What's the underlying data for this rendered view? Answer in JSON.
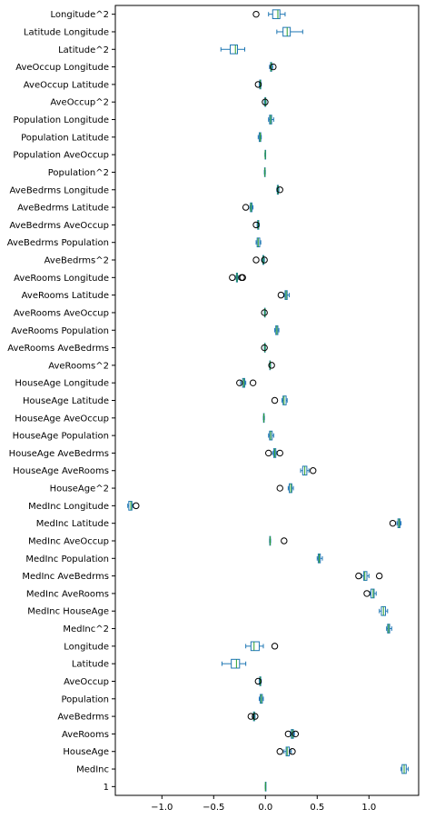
{
  "chart_data": {
    "type": "boxplot",
    "orientation": "horizontal",
    "xlim": [
      -1.45,
      1.48
    ],
    "xticks": [
      -1.0,
      -0.5,
      0.0,
      0.5,
      1.0
    ],
    "xtick_labels": [
      "−1.0",
      "−0.5",
      "0.0",
      "0.5",
      "1.0"
    ],
    "colors": {
      "box": "#1f77b4",
      "median": "#2ca02c",
      "whisker": "#1f77b4",
      "flier": "#000000"
    },
    "boxes": [
      {
        "label": "Longitude^2",
        "wlo": 0.03,
        "q1": 0.07,
        "med": 0.12,
        "q3": 0.14,
        "whi": 0.19,
        "fliers": [
          -0.09
        ]
      },
      {
        "label": "Latitude Longitude",
        "wlo": 0.11,
        "q1": 0.17,
        "med": 0.21,
        "q3": 0.24,
        "whi": 0.36,
        "fliers": []
      },
      {
        "label": "Latitude^2",
        "wlo": -0.43,
        "q1": -0.34,
        "med": -0.29,
        "q3": -0.27,
        "whi": -0.2,
        "fliers": []
      },
      {
        "label": "AveOccup Longitude",
        "wlo": 0.04,
        "q1": 0.05,
        "med": 0.055,
        "q3": 0.06,
        "whi": 0.07,
        "fliers": [
          0.075
        ]
      },
      {
        "label": "AveOccup Latitude",
        "wlo": -0.06,
        "q1": -0.055,
        "med": -0.05,
        "q3": -0.045,
        "whi": -0.04,
        "fliers": [
          -0.07
        ]
      },
      {
        "label": "AveOccup^2",
        "wlo": -0.01,
        "q1": -0.005,
        "med": 0.0,
        "q3": 0.003,
        "whi": 0.006,
        "fliers": [
          -0.003
        ]
      },
      {
        "label": "Population Longitude",
        "wlo": 0.03,
        "q1": 0.04,
        "med": 0.05,
        "q3": 0.06,
        "whi": 0.08,
        "fliers": []
      },
      {
        "label": "Population Latitude",
        "wlo": -0.07,
        "q1": -0.06,
        "med": -0.05,
        "q3": -0.045,
        "whi": -0.04,
        "fliers": []
      },
      {
        "label": "Population AveOccup",
        "wlo": -0.005,
        "q1": -0.003,
        "med": -0.002,
        "q3": -0.001,
        "whi": 0.001,
        "fliers": []
      },
      {
        "label": "Population^2",
        "wlo": -0.01,
        "q1": -0.008,
        "med": -0.005,
        "q3": -0.003,
        "whi": -0.001,
        "fliers": []
      },
      {
        "label": "AveBedrms Longitude",
        "wlo": 0.11,
        "q1": 0.115,
        "med": 0.12,
        "q3": 0.125,
        "whi": 0.13,
        "fliers": [
          0.14
        ]
      },
      {
        "label": "AveBedrms Latitude",
        "wlo": -0.15,
        "q1": -0.145,
        "med": -0.14,
        "q3": -0.13,
        "whi": -0.12,
        "fliers": [
          -0.19
        ]
      },
      {
        "label": "AveBedrms AveOccup",
        "wlo": -0.08,
        "q1": -0.075,
        "med": -0.07,
        "q3": -0.065,
        "whi": -0.06,
        "fliers": [
          -0.09
        ]
      },
      {
        "label": "AveBedrms Population",
        "wlo": -0.09,
        "q1": -0.08,
        "med": -0.07,
        "q3": -0.055,
        "whi": -0.045,
        "fliers": []
      },
      {
        "label": "AveBedrms^2",
        "wlo": -0.03,
        "q1": -0.025,
        "med": -0.02,
        "q3": -0.015,
        "whi": -0.01,
        "fliers": [
          -0.09,
          -0.01
        ]
      },
      {
        "label": "AveRooms Longitude",
        "wlo": -0.29,
        "q1": -0.28,
        "med": -0.275,
        "q3": -0.27,
        "whi": -0.26,
        "fliers": [
          -0.32,
          -0.23,
          -0.22
        ]
      },
      {
        "label": "AveRooms Latitude",
        "wlo": 0.18,
        "q1": 0.19,
        "med": 0.2,
        "q3": 0.21,
        "whi": 0.23,
        "fliers": [
          0.15
        ]
      },
      {
        "label": "AveRooms AveOccup",
        "wlo": -0.01,
        "q1": -0.008,
        "med": -0.005,
        "q3": -0.003,
        "whi": 0.0,
        "fliers": [
          -0.01
        ]
      },
      {
        "label": "AveRooms Population",
        "wlo": 0.09,
        "q1": 0.1,
        "med": 0.11,
        "q3": 0.12,
        "whi": 0.13,
        "fliers": []
      },
      {
        "label": "AveRooms AveBedrms",
        "wlo": -0.01,
        "q1": -0.008,
        "med": -0.005,
        "q3": -0.003,
        "whi": 0.0,
        "fliers": [
          -0.01
        ]
      },
      {
        "label": "AveRooms^2",
        "wlo": 0.04,
        "q1": 0.042,
        "med": 0.045,
        "q3": 0.047,
        "whi": 0.05,
        "fliers": [
          0.06
        ]
      },
      {
        "label": "HouseAge Longitude",
        "wlo": -0.24,
        "q1": -0.22,
        "med": -0.21,
        "q3": -0.2,
        "whi": -0.19,
        "fliers": [
          -0.25,
          -0.12
        ]
      },
      {
        "label": "HouseAge Latitude",
        "wlo": 0.16,
        "q1": 0.17,
        "med": 0.18,
        "q3": 0.2,
        "whi": 0.21,
        "fliers": [
          0.09
        ]
      },
      {
        "label": "HouseAge AveOccup",
        "wlo": -0.02,
        "q1": -0.018,
        "med": -0.015,
        "q3": -0.013,
        "whi": -0.01,
        "fliers": []
      },
      {
        "label": "HouseAge Population",
        "wlo": 0.03,
        "q1": 0.04,
        "med": 0.05,
        "q3": 0.065,
        "whi": 0.08,
        "fliers": []
      },
      {
        "label": "HouseAge AveBedrms",
        "wlo": 0.07,
        "q1": 0.08,
        "med": 0.09,
        "q3": 0.1,
        "whi": 0.11,
        "fliers": [
          0.03,
          0.14
        ]
      },
      {
        "label": "HouseAge AveRooms",
        "wlo": 0.34,
        "q1": 0.36,
        "med": 0.38,
        "q3": 0.4,
        "whi": 0.42,
        "fliers": [
          0.46
        ]
      },
      {
        "label": "HouseAge^2",
        "wlo": 0.22,
        "q1": 0.23,
        "med": 0.245,
        "q3": 0.255,
        "whi": 0.27,
        "fliers": [
          0.14
        ]
      },
      {
        "label": "MedInc Longitude",
        "wlo": -1.33,
        "q1": -1.32,
        "med": -1.3,
        "q3": -1.29,
        "whi": -1.28,
        "fliers": [
          -1.25
        ]
      },
      {
        "label": "MedInc Latitude",
        "wlo": 1.27,
        "q1": 1.28,
        "med": 1.29,
        "q3": 1.3,
        "whi": 1.31,
        "fliers": [
          1.23
        ]
      },
      {
        "label": "MedInc AveOccup",
        "wlo": 0.04,
        "q1": 0.042,
        "med": 0.045,
        "q3": 0.048,
        "whi": 0.05,
        "fliers": [
          0.18
        ]
      },
      {
        "label": "MedInc Population",
        "wlo": 0.5,
        "q1": 0.51,
        "med": 0.52,
        "q3": 0.53,
        "whi": 0.55,
        "fliers": []
      },
      {
        "label": "MedInc AveBedrms",
        "wlo": 0.93,
        "q1": 0.95,
        "med": 0.96,
        "q3": 0.98,
        "whi": 1.0,
        "fliers": [
          0.9,
          1.1
        ]
      },
      {
        "label": "MedInc AveRooms",
        "wlo": 1.01,
        "q1": 1.02,
        "med": 1.04,
        "q3": 1.05,
        "whi": 1.07,
        "fliers": [
          0.98
        ]
      },
      {
        "label": "MedInc HouseAge",
        "wlo": 1.1,
        "q1": 1.12,
        "med": 1.14,
        "q3": 1.16,
        "whi": 1.18,
        "fliers": []
      },
      {
        "label": "MedInc^2",
        "wlo": 1.17,
        "q1": 1.18,
        "med": 1.19,
        "q3": 1.2,
        "whi": 1.22,
        "fliers": []
      },
      {
        "label": "Longitude",
        "wlo": -0.19,
        "q1": -0.14,
        "med": -0.11,
        "q3": -0.06,
        "whi": -0.02,
        "fliers": [
          0.09
        ]
      },
      {
        "label": "Latitude",
        "wlo": -0.42,
        "q1": -0.33,
        "med": -0.28,
        "q3": -0.25,
        "whi": -0.19,
        "fliers": []
      },
      {
        "label": "AveOccup",
        "wlo": -0.06,
        "q1": -0.055,
        "med": -0.05,
        "q3": -0.045,
        "whi": -0.04,
        "fliers": [
          -0.07
        ]
      },
      {
        "label": "Population",
        "wlo": -0.06,
        "q1": -0.05,
        "med": -0.04,
        "q3": -0.03,
        "whi": -0.02,
        "fliers": []
      },
      {
        "label": "AveBedrms",
        "wlo": -0.12,
        "q1": -0.115,
        "med": -0.11,
        "q3": -0.105,
        "whi": -0.1,
        "fliers": [
          -0.14,
          -0.1
        ]
      },
      {
        "label": "AveRooms",
        "wlo": 0.24,
        "q1": 0.25,
        "med": 0.26,
        "q3": 0.27,
        "whi": 0.28,
        "fliers": [
          0.22,
          0.29
        ]
      },
      {
        "label": "HouseAge",
        "wlo": 0.18,
        "q1": 0.2,
        "med": 0.21,
        "q3": 0.23,
        "whi": 0.25,
        "fliers": [
          0.14,
          0.26
        ]
      },
      {
        "label": "MedInc",
        "wlo": 1.31,
        "q1": 1.32,
        "med": 1.34,
        "q3": 1.36,
        "whi": 1.38,
        "fliers": []
      },
      {
        "label": "1",
        "wlo": 0.0,
        "q1": 0.0,
        "med": 0.0,
        "q3": 0.0,
        "whi": 0.0,
        "fliers": []
      }
    ]
  }
}
